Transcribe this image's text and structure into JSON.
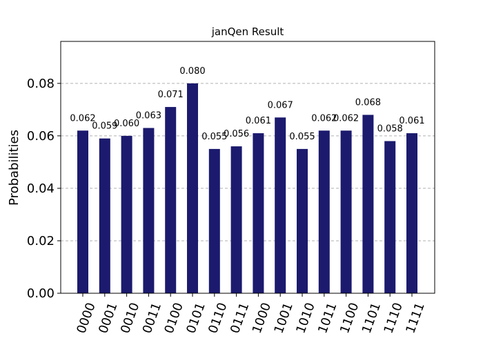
{
  "chart_data": {
    "type": "bar",
    "title": "janQen Result",
    "xlabel": "",
    "ylabel": "Probabilities",
    "ylim": [
      0,
      0.096
    ],
    "yticks": [
      "0.00",
      "0.02",
      "0.04",
      "0.06",
      "0.08"
    ],
    "ytick_values": [
      0,
      0.02,
      0.04,
      0.06,
      0.08
    ],
    "grid": true,
    "bar_color": "#1b1a6e",
    "categories": [
      "0000",
      "0001",
      "0010",
      "0011",
      "0100",
      "0101",
      "0110",
      "0111",
      "1000",
      "1001",
      "1010",
      "1011",
      "1100",
      "1101",
      "1110",
      "1111"
    ],
    "values": [
      0.062,
      0.059,
      0.06,
      0.063,
      0.071,
      0.08,
      0.055,
      0.056,
      0.061,
      0.067,
      0.055,
      0.062,
      0.062,
      0.068,
      0.058,
      0.061
    ],
    "data_labels": [
      "0.062",
      "0.059",
      "0.060",
      "0.063",
      "0.071",
      "0.080",
      "0.055",
      "0.056",
      "0.061",
      "0.067",
      "0.055",
      "0.062",
      "0.062",
      "0.068",
      "0.058",
      "0.061"
    ]
  }
}
